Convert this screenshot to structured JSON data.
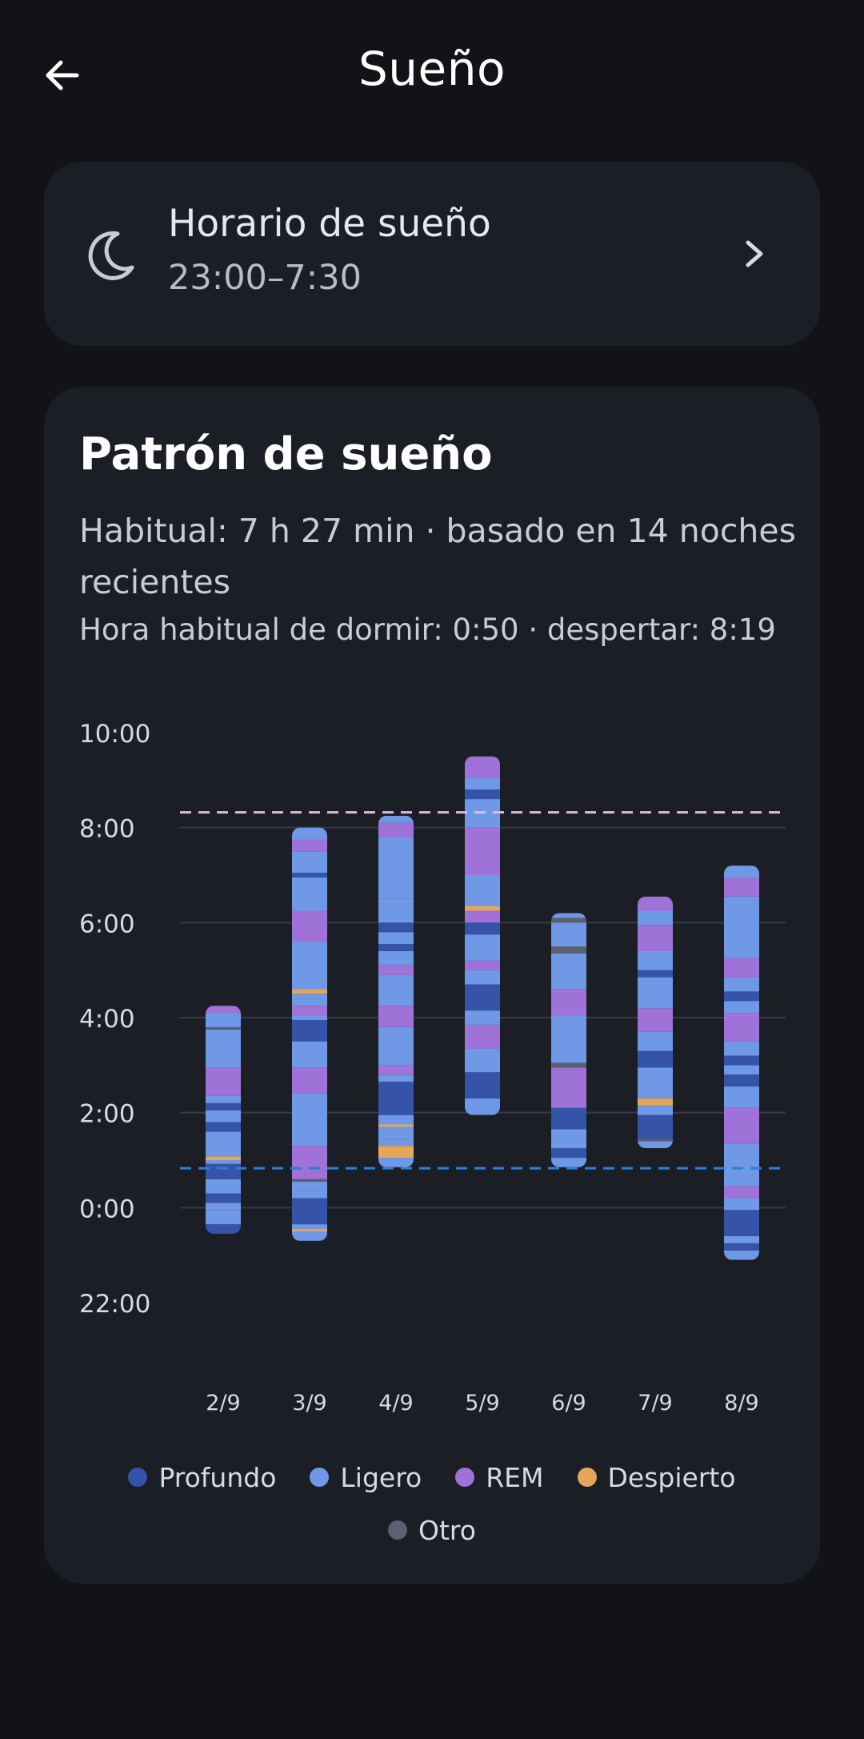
{
  "header": {
    "title": "Sueño",
    "back_icon": "arrow-left-icon"
  },
  "schedule_card": {
    "title": "Horario de sueño",
    "time": "23:00–7:30",
    "icon": "moon-icon",
    "chevron_icon": "chevron-right-icon"
  },
  "pattern_card": {
    "title": "Patrón de sueño",
    "summary": "Habitual: 7 h 27 min · basado en 14 noches recientes",
    "hours": "Hora habitual de dormir: 0:50 · despertar: 8:19"
  },
  "colors": {
    "Profundo": "#3553a8",
    "Ligero": "#6f98e6",
    "REM": "#9e72d6",
    "Despierto": "#e6a659",
    "Otro": "#5a6170",
    "bedtime_line": "#2a7fd6",
    "wake_line": "#e2b8e8",
    "grid": "#363a44",
    "tick_text": "#d7dae1"
  },
  "legend": {
    "items": [
      {
        "label": "Profundo",
        "color": "#3553a8"
      },
      {
        "label": "Ligero",
        "color": "#6f98e6"
      },
      {
        "label": "REM",
        "color": "#9e72d6"
      },
      {
        "label": "Despierto",
        "color": "#e6a659"
      },
      {
        "label": "Otro",
        "color": "#5a6170"
      }
    ]
  },
  "chart_data": {
    "type": "bar",
    "y_axis": {
      "ticks": [
        "10:00",
        "8:00",
        "6:00",
        "4:00",
        "2:00",
        "0:00",
        "22:00"
      ],
      "tick_values": [
        10,
        8,
        6,
        4,
        2,
        0,
        -2
      ],
      "range": [
        -2,
        10
      ]
    },
    "categories": [
      "2/9",
      "3/9",
      "4/9",
      "5/9",
      "6/9",
      "7/9",
      "8/9"
    ],
    "reference_lines": [
      {
        "label": "Hora habitual de despertar",
        "value": 8.32,
        "color": "#e2b8e8"
      },
      {
        "label": "Hora habitual de dormir",
        "value": 0.83,
        "color": "#2a7fd6"
      }
    ],
    "nights": [
      {
        "date": "2/9",
        "segments": [
          [
            -0.55,
            -0.35,
            "Profundo"
          ],
          [
            -0.35,
            -0.05,
            "Ligero"
          ],
          [
            -0.05,
            0.1,
            "Ligero"
          ],
          [
            0.1,
            0.3,
            "Profundo"
          ],
          [
            0.3,
            0.6,
            "Ligero"
          ],
          [
            0.6,
            0.92,
            "Profundo"
          ],
          [
            0.92,
            1.0,
            "Ligero"
          ],
          [
            1.0,
            1.08,
            "Despierto"
          ],
          [
            1.08,
            1.6,
            "Ligero"
          ],
          [
            1.6,
            1.8,
            "Profundo"
          ],
          [
            1.8,
            2.05,
            "Ligero"
          ],
          [
            2.05,
            2.2,
            "Profundo"
          ],
          [
            2.2,
            2.35,
            "Ligero"
          ],
          [
            2.35,
            2.95,
            "REM"
          ],
          [
            2.95,
            3.75,
            "Ligero"
          ],
          [
            3.75,
            3.8,
            "Otro"
          ],
          [
            3.8,
            4.1,
            "Ligero"
          ],
          [
            4.1,
            4.25,
            "REM"
          ]
        ]
      },
      {
        "date": "3/9",
        "segments": [
          [
            -0.7,
            -0.5,
            "Ligero"
          ],
          [
            -0.5,
            -0.45,
            "Despierto"
          ],
          [
            -0.45,
            -0.35,
            "Ligero"
          ],
          [
            -0.35,
            0.2,
            "Profundo"
          ],
          [
            0.2,
            0.35,
            "Ligero"
          ],
          [
            0.35,
            0.55,
            "Ligero"
          ],
          [
            0.55,
            0.6,
            "Otro"
          ],
          [
            0.6,
            1.3,
            "REM"
          ],
          [
            1.3,
            2.4,
            "Ligero"
          ],
          [
            2.4,
            2.95,
            "REM"
          ],
          [
            2.95,
            3.5,
            "Ligero"
          ],
          [
            3.5,
            3.95,
            "Profundo"
          ],
          [
            3.95,
            4.05,
            "Ligero"
          ],
          [
            4.05,
            4.25,
            "REM"
          ],
          [
            4.25,
            4.5,
            "Ligero"
          ],
          [
            4.5,
            4.6,
            "Despierto"
          ],
          [
            4.6,
            5.6,
            "Ligero"
          ],
          [
            5.6,
            6.25,
            "REM"
          ],
          [
            6.25,
            6.95,
            "Ligero"
          ],
          [
            6.95,
            7.05,
            "Profundo"
          ],
          [
            7.05,
            7.5,
            "Ligero"
          ],
          [
            7.5,
            7.75,
            "REM"
          ],
          [
            7.75,
            8.0,
            "Ligero"
          ]
        ]
      },
      {
        "date": "4/9",
        "segments": [
          [
            0.85,
            1.05,
            "Ligero"
          ],
          [
            1.05,
            1.3,
            "Despierto"
          ],
          [
            1.3,
            1.45,
            "Ligero"
          ],
          [
            1.45,
            1.7,
            "Ligero"
          ],
          [
            1.7,
            1.75,
            "Despierto"
          ],
          [
            1.75,
            1.95,
            "Ligero"
          ],
          [
            1.95,
            2.65,
            "Profundo"
          ],
          [
            2.65,
            2.8,
            "Ligero"
          ],
          [
            2.8,
            3.0,
            "REM"
          ],
          [
            3.0,
            3.8,
            "Ligero"
          ],
          [
            3.8,
            4.25,
            "REM"
          ],
          [
            4.25,
            4.9,
            "Ligero"
          ],
          [
            4.9,
            5.1,
            "REM"
          ],
          [
            5.1,
            5.4,
            "Ligero"
          ],
          [
            5.4,
            5.55,
            "Profundo"
          ],
          [
            5.55,
            5.8,
            "Ligero"
          ],
          [
            5.8,
            6.0,
            "Profundo"
          ],
          [
            6.0,
            6.5,
            "Ligero"
          ],
          [
            6.5,
            7.8,
            "Ligero"
          ],
          [
            7.8,
            8.1,
            "REM"
          ],
          [
            8.1,
            8.25,
            "Ligero"
          ]
        ]
      },
      {
        "date": "5/9",
        "segments": [
          [
            1.95,
            2.3,
            "Ligero"
          ],
          [
            2.3,
            2.85,
            "Profundo"
          ],
          [
            2.85,
            3.35,
            "Ligero"
          ],
          [
            3.35,
            3.85,
            "REM"
          ],
          [
            3.85,
            4.15,
            "Ligero"
          ],
          [
            4.15,
            4.7,
            "Profundo"
          ],
          [
            4.7,
            5.0,
            "Ligero"
          ],
          [
            5.0,
            5.2,
            "REM"
          ],
          [
            5.2,
            5.75,
            "Ligero"
          ],
          [
            5.75,
            6.0,
            "Profundo"
          ],
          [
            6.0,
            6.25,
            "REM"
          ],
          [
            6.25,
            6.35,
            "Despierto"
          ],
          [
            6.35,
            7.0,
            "Ligero"
          ],
          [
            7.0,
            8.0,
            "REM"
          ],
          [
            8.0,
            8.6,
            "Ligero"
          ],
          [
            8.6,
            8.8,
            "Profundo"
          ],
          [
            8.8,
            9.05,
            "Ligero"
          ],
          [
            9.05,
            9.5,
            "REM"
          ]
        ]
      },
      {
        "date": "6/9",
        "segments": [
          [
            0.85,
            1.05,
            "Ligero"
          ],
          [
            1.05,
            1.25,
            "Profundo"
          ],
          [
            1.25,
            1.65,
            "Ligero"
          ],
          [
            1.65,
            2.1,
            "Profundo"
          ],
          [
            2.1,
            2.95,
            "REM"
          ],
          [
            2.95,
            3.05,
            "Otro"
          ],
          [
            3.05,
            4.05,
            "Ligero"
          ],
          [
            4.05,
            4.6,
            "REM"
          ],
          [
            4.6,
            5.35,
            "Ligero"
          ],
          [
            5.35,
            5.5,
            "Otro"
          ],
          [
            5.5,
            6.0,
            "Ligero"
          ],
          [
            6.0,
            6.1,
            "Otro"
          ],
          [
            6.1,
            6.2,
            "Ligero"
          ]
        ]
      },
      {
        "date": "7/9",
        "segments": [
          [
            1.25,
            1.4,
            "Ligero"
          ],
          [
            1.4,
            1.45,
            "Otro"
          ],
          [
            1.45,
            1.95,
            "Profundo"
          ],
          [
            1.95,
            2.15,
            "Ligero"
          ],
          [
            2.15,
            2.3,
            "Despierto"
          ],
          [
            2.3,
            2.95,
            "Ligero"
          ],
          [
            2.95,
            3.3,
            "Profundo"
          ],
          [
            3.3,
            3.7,
            "Ligero"
          ],
          [
            3.7,
            4.2,
            "REM"
          ],
          [
            4.2,
            4.85,
            "Ligero"
          ],
          [
            4.85,
            5.0,
            "Profundo"
          ],
          [
            5.0,
            5.4,
            "Ligero"
          ],
          [
            5.4,
            5.95,
            "REM"
          ],
          [
            5.95,
            6.25,
            "Ligero"
          ],
          [
            6.25,
            6.55,
            "REM"
          ]
        ]
      },
      {
        "date": "8/9",
        "segments": [
          [
            -1.1,
            -0.9,
            "Ligero"
          ],
          [
            -0.9,
            -0.75,
            "Profundo"
          ],
          [
            -0.75,
            -0.6,
            "Ligero"
          ],
          [
            -0.6,
            -0.05,
            "Profundo"
          ],
          [
            -0.05,
            0.2,
            "Ligero"
          ],
          [
            0.2,
            0.45,
            "REM"
          ],
          [
            0.45,
            1.35,
            "Ligero"
          ],
          [
            1.35,
            2.1,
            "REM"
          ],
          [
            2.1,
            2.55,
            "Ligero"
          ],
          [
            2.55,
            2.8,
            "Profundo"
          ],
          [
            2.8,
            3.0,
            "Ligero"
          ],
          [
            3.0,
            3.2,
            "Profundo"
          ],
          [
            3.2,
            3.5,
            "Ligero"
          ],
          [
            3.5,
            4.1,
            "REM"
          ],
          [
            4.1,
            4.35,
            "Ligero"
          ],
          [
            4.35,
            4.55,
            "Profundo"
          ],
          [
            4.55,
            4.85,
            "Ligero"
          ],
          [
            4.85,
            5.25,
            "REM"
          ],
          [
            5.25,
            6.55,
            "Ligero"
          ],
          [
            6.55,
            6.95,
            "REM"
          ],
          [
            6.95,
            7.2,
            "Ligero"
          ]
        ]
      }
    ]
  }
}
